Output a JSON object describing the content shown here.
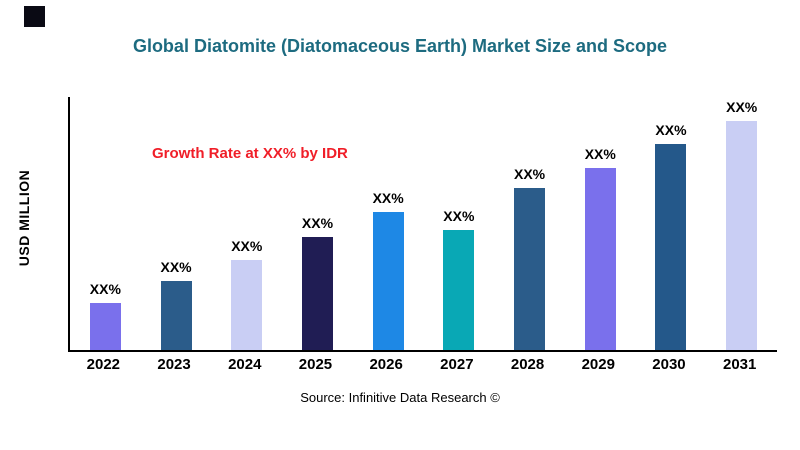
{
  "source": "Source: Infinitive Data Research ©",
  "chart_data": {
    "type": "bar",
    "title": "Global Diatomite (Diatomaceous Earth) Market Size and Scope",
    "ylabel": "USD MILLION",
    "xlabel": "",
    "annotation": "Growth Rate at XX% by IDR",
    "categories": [
      "2022",
      "2023",
      "2024",
      "2025",
      "2026",
      "2027",
      "2028",
      "2029",
      "2030",
      "2031"
    ],
    "values": [
      47,
      69,
      90,
      113,
      138,
      120,
      162,
      182,
      206,
      229
    ],
    "bar_labels": [
      "XX%",
      "XX%",
      "XX%",
      "XX%",
      "XX%",
      "XX%",
      "XX%",
      "XX%",
      "XX%",
      "XX%"
    ],
    "colors": [
      "#7a70ec",
      "#2b5c8a",
      "#c9cef4",
      "#201d54",
      "#1e88e5",
      "#09a8b5",
      "#2b5c8a",
      "#7a70ec",
      "#24588a",
      "#c9cef4"
    ],
    "value_note": "values are relative bar heights; actual magnitudes masked as XX% in the figure",
    "ylim": null,
    "grid": false,
    "legend": false,
    "accent_colors": {
      "title": "#1d6b80",
      "annotation": "#f01e28",
      "axis": "#000000"
    }
  }
}
